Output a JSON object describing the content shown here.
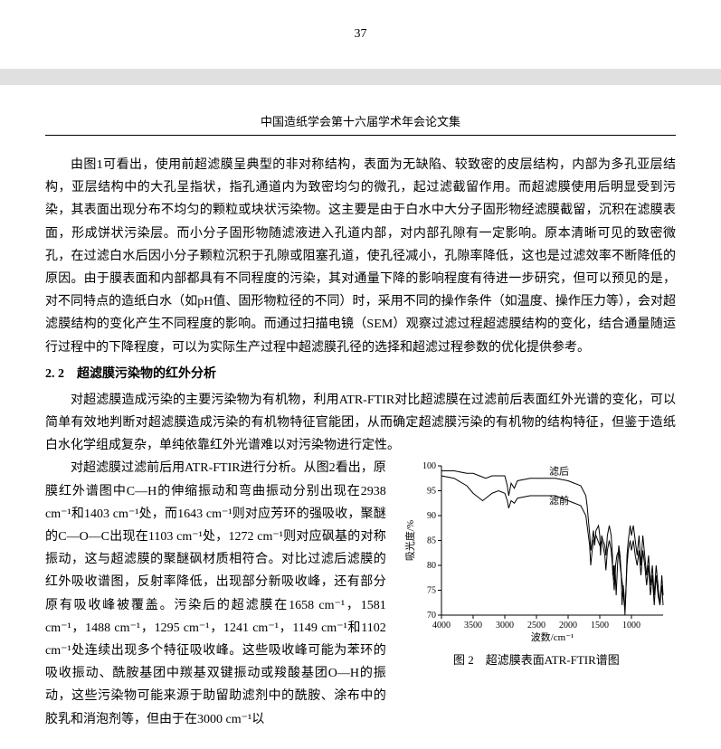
{
  "page_number": "37",
  "journal_header": "中国造纸学会第十六届学术年会论文集",
  "para1": "由图1可看出，使用前超滤膜呈典型的非对称结构，表面为无缺陷、较致密的皮层结构，内部为多孔亚层结构，亚层结构中的大孔呈指状，指孔通道内为致密均匀的微孔，起过滤截留作用。而超滤膜使用后明显受到污染，其表面出现分布不均匀的颗粒或块状污染物。这主要是由于白水中大分子固形物经滤膜截留，沉积在滤膜表面，形成饼状污染层。而小分子固形物随滤液进入孔道内部，对内部孔隙有一定影响。原本清晰可见的致密微孔，在过滤白水后因小分子颗粒沉积于孔隙或阻塞孔道，使孔径减小，孔隙率降低，这也是过滤效率不断降低的原因。由于膜表面和内部都具有不同程度的污染，其对通量下降的影响程度有待进一步研究，但可以预见的是，对不同特点的造纸白水（如pH值、固形物粒径的不同）时，采用不同的操作条件（如温度、操作压力等），会对超滤膜结构的变化产生不同程度的影响。而通过扫描电镜（SEM）观察过滤过程超滤膜结构的变化，结合通量随运行过程中的下降程度，可以为实际生产过程中超滤膜孔径的选择和超滤过程参数的优化提供参考。",
  "section_2_2": "2. 2　超滤膜污染物的红外分析",
  "para2": "对超滤膜造成污染的主要污染物为有机物，利用ATR-FTIR对比超滤膜在过滤前后表面红外光谱的变化，可以简单有效地判断对超滤膜造成污染的有机物特征官能团，从而确定超滤膜污染的有机物的结构特征，但鉴于造纸白水化学组成复杂，单纯依靠红外光谱难以对污染物进行定性。",
  "para3": "对超滤膜过滤前后用ATR-FTIR进行分析。从图2看出，原膜红外谱图中C—H的伸缩振动和弯曲振动分别出现在2938 cm⁻¹和1403 cm⁻¹处，而1643 cm⁻¹则对应芳环的强吸收，聚醚的C—O—C出现在1103 cm⁻¹处，1272 cm⁻¹则对应砜基的对称振动，这与超滤膜的聚醚砜材质相符合。对比过滤后滤膜的红外吸收谱图，反射率降低，出现部分新吸收峰，还有部分原有吸收峰被覆盖。污染后的超滤膜在1658 cm⁻¹，1581 cm⁻¹，1488 cm⁻¹，1295 cm⁻¹，1241 cm⁻¹，1149 cm⁻¹和1102 cm⁻¹处连续出现多个特征吸收峰。这些吸收峰可能为苯环的吸收振动、酰胺基团中羰基双键振动或羧酸基团O—H的振动，这些污染物可能来源于助留助滤剂中的酰胺、涂布中的胶乳和消泡剂等，但由于在3000 cm⁻¹以",
  "chart": {
    "x_label": "波数/cm⁻¹",
    "y_label": "吸光度/%",
    "x_min": 500,
    "x_max": 4000,
    "x_ticks": [
      4000,
      3500,
      3000,
      2500,
      2000,
      1500,
      1000
    ],
    "y_min": 70,
    "y_max": 100,
    "y_ticks": [
      70,
      75,
      80,
      85,
      90,
      95,
      100
    ],
    "legend_after": "滤后",
    "legend_before": "滤前",
    "caption": "图 2　超滤膜表面ATR-FTIR谱图",
    "background_color": "#ffffff",
    "line_color": "#000000",
    "after_series": [
      [
        4000,
        99
      ],
      [
        3800,
        99
      ],
      [
        3600,
        98.5
      ],
      [
        3500,
        98.5
      ],
      [
        3400,
        98
      ],
      [
        3300,
        97.5
      ],
      [
        3200,
        98
      ],
      [
        3100,
        98
      ],
      [
        3000,
        98
      ],
      [
        2960,
        96
      ],
      [
        2938,
        94
      ],
      [
        2900,
        96.5
      ],
      [
        2850,
        95.5
      ],
      [
        2800,
        97
      ],
      [
        2600,
        97.5
      ],
      [
        2400,
        97.5
      ],
      [
        2200,
        97.5
      ],
      [
        2000,
        97
      ],
      [
        1900,
        96.5
      ],
      [
        1800,
        96
      ],
      [
        1720,
        94
      ],
      [
        1700,
        92
      ],
      [
        1658,
        86
      ],
      [
        1640,
        83
      ],
      [
        1620,
        85
      ],
      [
        1600,
        87
      ],
      [
        1581,
        84
      ],
      [
        1560,
        87
      ],
      [
        1520,
        88
      ],
      [
        1500,
        86
      ],
      [
        1488,
        82
      ],
      [
        1470,
        86
      ],
      [
        1450,
        85
      ],
      [
        1420,
        84
      ],
      [
        1403,
        82
      ],
      [
        1380,
        86
      ],
      [
        1350,
        88
      ],
      [
        1320,
        86
      ],
      [
        1300,
        82
      ],
      [
        1295,
        78
      ],
      [
        1280,
        80
      ],
      [
        1272,
        77
      ],
      [
        1260,
        80
      ],
      [
        1241,
        74
      ],
      [
        1220,
        80
      ],
      [
        1200,
        84
      ],
      [
        1180,
        82
      ],
      [
        1160,
        78
      ],
      [
        1149,
        72
      ],
      [
        1130,
        76
      ],
      [
        1115,
        74
      ],
      [
        1102,
        70
      ],
      [
        1090,
        74
      ],
      [
        1070,
        82
      ],
      [
        1050,
        85
      ],
      [
        1020,
        88
      ],
      [
        1000,
        86
      ],
      [
        970,
        88
      ],
      [
        940,
        85
      ],
      [
        910,
        82
      ],
      [
        880,
        86
      ],
      [
        850,
        80
      ],
      [
        820,
        86
      ],
      [
        790,
        82
      ],
      [
        760,
        78
      ],
      [
        730,
        82
      ],
      [
        700,
        76
      ],
      [
        670,
        80
      ],
      [
        640,
        74
      ],
      [
        610,
        80
      ],
      [
        580,
        76
      ],
      [
        550,
        72
      ],
      [
        520,
        78
      ],
      [
        500,
        74
      ]
    ],
    "before_series": [
      [
        4000,
        98
      ],
      [
        3800,
        97.5
      ],
      [
        3600,
        96
      ],
      [
        3500,
        94.5
      ],
      [
        3400,
        93.5
      ],
      [
        3350,
        93
      ],
      [
        3300,
        93.5
      ],
      [
        3200,
        94.5
      ],
      [
        3100,
        95
      ],
      [
        3000,
        94.5
      ],
      [
        2960,
        93
      ],
      [
        2938,
        91.5
      ],
      [
        2900,
        93
      ],
      [
        2850,
        92.5
      ],
      [
        2800,
        93.5
      ],
      [
        2600,
        94
      ],
      [
        2400,
        94
      ],
      [
        2200,
        94
      ],
      [
        2100,
        93.5
      ],
      [
        2000,
        93
      ],
      [
        1900,
        92.5
      ],
      [
        1800,
        92
      ],
      [
        1720,
        90
      ],
      [
        1700,
        88
      ],
      [
        1660,
        84
      ],
      [
        1643,
        80
      ],
      [
        1620,
        83
      ],
      [
        1600,
        85
      ],
      [
        1560,
        86
      ],
      [
        1500,
        84
      ],
      [
        1470,
        85
      ],
      [
        1450,
        84
      ],
      [
        1420,
        82
      ],
      [
        1403,
        79
      ],
      [
        1380,
        83
      ],
      [
        1350,
        85
      ],
      [
        1320,
        83
      ],
      [
        1300,
        80
      ],
      [
        1272,
        75
      ],
      [
        1250,
        80
      ],
      [
        1230,
        82
      ],
      [
        1200,
        83
      ],
      [
        1180,
        80
      ],
      [
        1160,
        78
      ],
      [
        1140,
        76
      ],
      [
        1120,
        73
      ],
      [
        1103,
        71
      ],
      [
        1090,
        74
      ],
      [
        1070,
        80
      ],
      [
        1050,
        83
      ],
      [
        1020,
        85
      ],
      [
        1000,
        83
      ],
      [
        970,
        85
      ],
      [
        940,
        82
      ],
      [
        910,
        80
      ],
      [
        880,
        83
      ],
      [
        850,
        78
      ],
      [
        820,
        83
      ],
      [
        790,
        80
      ],
      [
        760,
        76
      ],
      [
        730,
        80
      ],
      [
        700,
        74
      ],
      [
        670,
        78
      ],
      [
        640,
        72
      ],
      [
        610,
        78
      ],
      [
        580,
        74
      ],
      [
        550,
        72
      ],
      [
        520,
        76
      ],
      [
        500,
        72
      ]
    ]
  }
}
